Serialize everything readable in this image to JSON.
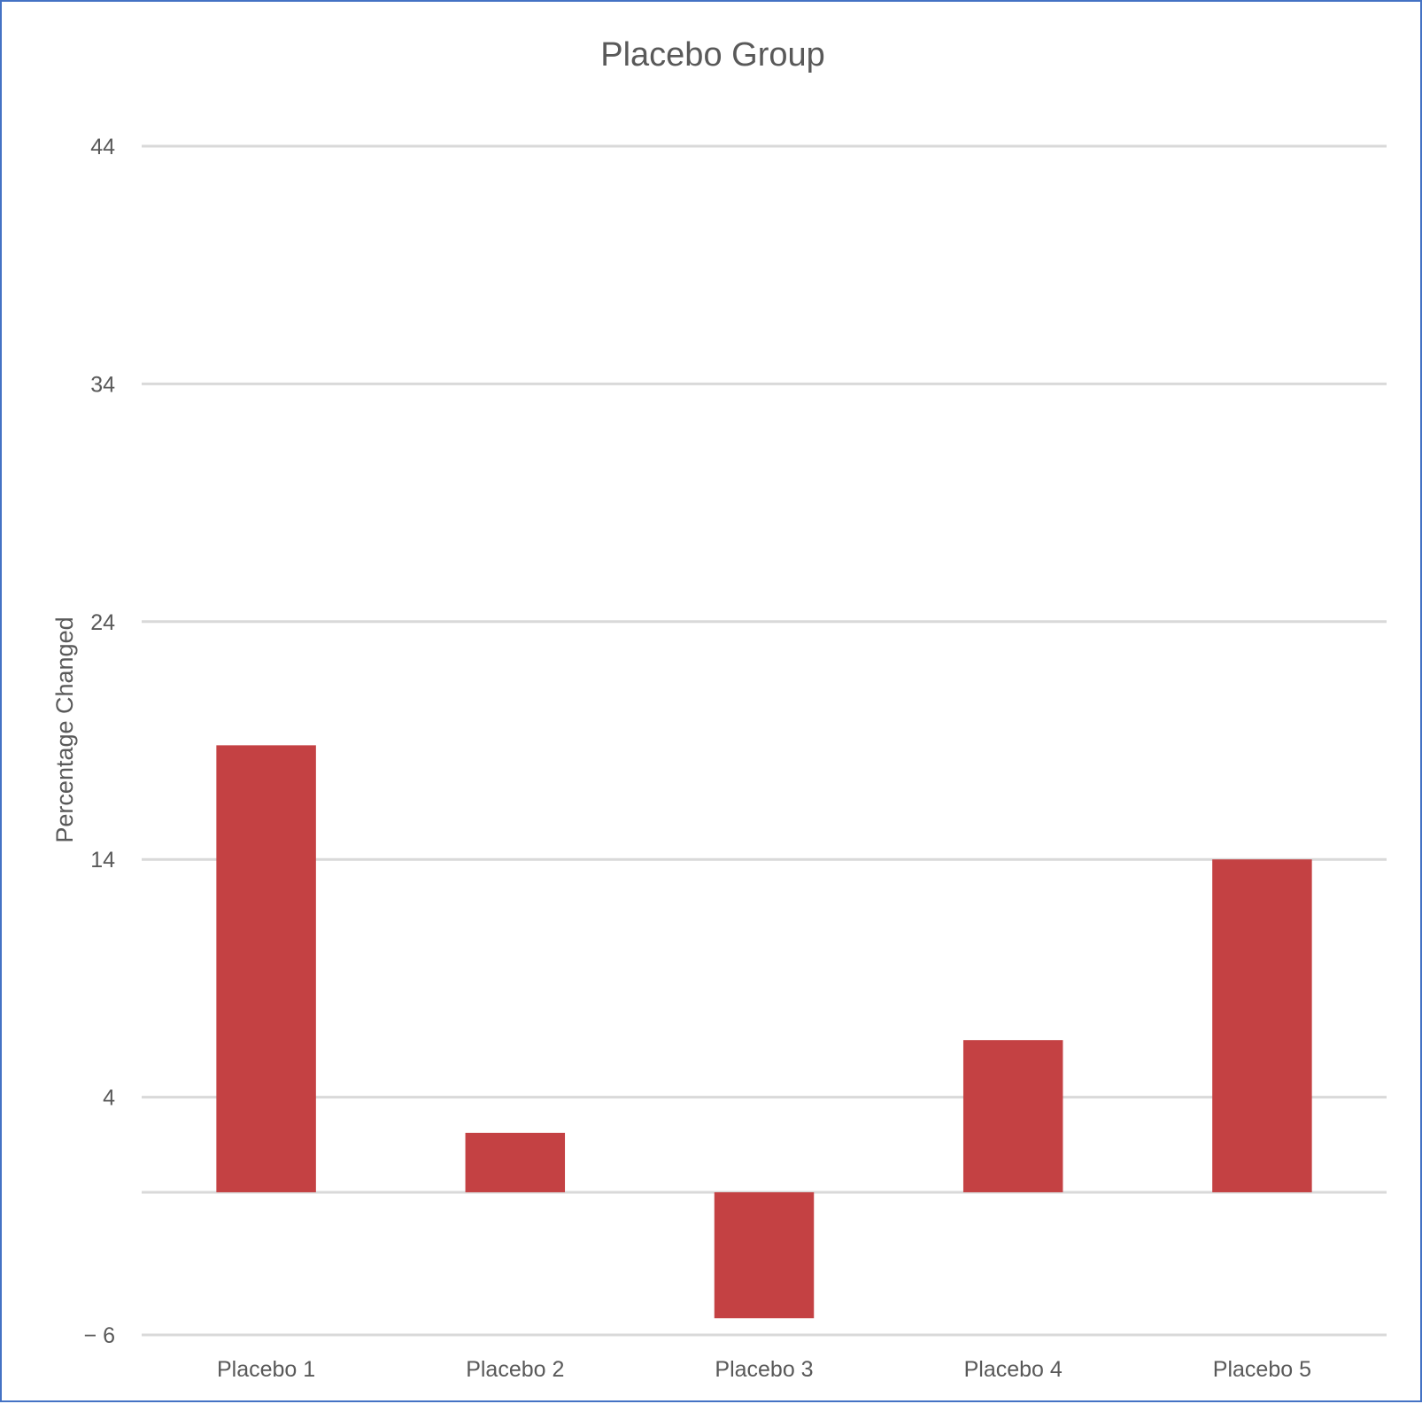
{
  "chart_data": {
    "type": "bar",
    "title": "Placebo Group",
    "xlabel": "",
    "ylabel": "Percentage Changed",
    "categories": [
      "Placebo 1",
      "Placebo 2",
      "Placebo 3",
      "Placebo 4",
      "Placebo 5"
    ],
    "values": [
      18.8,
      2.5,
      -5.3,
      6.4,
      14.0
    ],
    "yticks": [
      -6,
      4,
      14,
      24,
      34,
      44
    ],
    "ytick_labels": [
      "− 6",
      "4",
      "14",
      "24",
      "34",
      "44"
    ],
    "ylim": [
      -6,
      44
    ],
    "grid": true,
    "legend": "none",
    "bar_color": "#c44143",
    "grid_color": "#d9d9d9",
    "text_color": "#595959",
    "border_color": "#4472c4"
  }
}
